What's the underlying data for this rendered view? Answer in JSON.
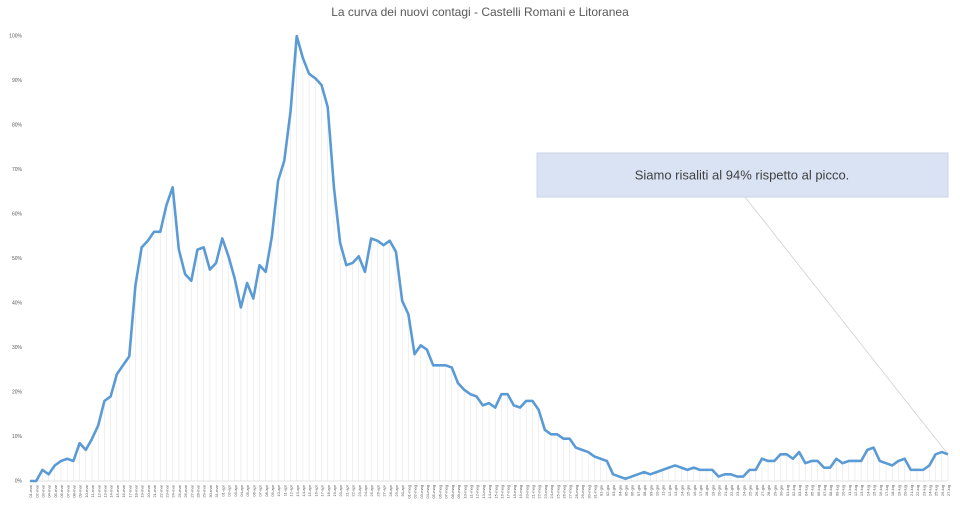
{
  "chart_data": {
    "type": "line",
    "title": "La curva dei nuovi contagi - Castelli Romani e Litoranea",
    "annotation": "Siamo risaliti al 94% rispetto al picco.",
    "categories": [
      "01-mar",
      "02-mar",
      "03-mar",
      "04-mar",
      "05-mar",
      "06-mar",
      "07-mar",
      "08-mar",
      "09-mar",
      "10-mar",
      "11-mar",
      "12-mar",
      "13-mar",
      "14-mar",
      "15-mar",
      "16-mar",
      "17-mar",
      "18-mar",
      "19-mar",
      "20-mar",
      "21-mar",
      "22-mar",
      "23-mar",
      "24-mar",
      "25-mar",
      "26-mar",
      "27-mar",
      "28-mar",
      "29-mar",
      "30-mar",
      "31-mar",
      "01-apr",
      "02-apr",
      "03-apr",
      "04-apr",
      "05-apr",
      "06-apr",
      "07-apr",
      "08-apr",
      "09-apr",
      "10-apr",
      "11-apr",
      "12-apr",
      "13-apr",
      "14-apr",
      "15-apr",
      "16-apr",
      "17-apr",
      "18-apr",
      "19-apr",
      "20-apr",
      "21-apr",
      "22-apr",
      "23-apr",
      "24-apr",
      "25-apr",
      "26-apr",
      "27-apr",
      "28-apr",
      "29-apr",
      "30-apr",
      "01-mag",
      "02-mag",
      "03-mag",
      "04-mag",
      "05-mag",
      "06-mag",
      "07-mag",
      "08-mag",
      "09-mag",
      "10-mag",
      "11-mag",
      "12-mag",
      "13-mag",
      "14-mag",
      "15-mag",
      "16-mag",
      "17-mag",
      "18-mag",
      "19-mag",
      "20-mag",
      "21-mag",
      "22-mag",
      "23-mag",
      "24-mag",
      "25-mag",
      "26-mag",
      "27-mag",
      "28-mag",
      "29-mag",
      "30-mag",
      "31-mag",
      "01-giu",
      "02-giu",
      "03-giu",
      "04-giu",
      "05-giu",
      "06-giu",
      "07-giu",
      "08-giu",
      "09-giu",
      "10-giu",
      "11-giu",
      "12-giu",
      "13-giu",
      "14-giu",
      "15-giu",
      "16-giu",
      "17-giu",
      "18-giu",
      "19-giu",
      "20-giu",
      "21-giu",
      "22-giu",
      "23-giu",
      "24-giu",
      "25-giu",
      "26-giu",
      "27-giu",
      "28-giu",
      "29-giu",
      "30-giu",
      "01-lug",
      "02-lug",
      "03-lug",
      "04-lug",
      "05-lug",
      "06-lug",
      "07-lug",
      "08-lug",
      "09-lug",
      "10-lug",
      "11-lug",
      "12-lug",
      "13-lug",
      "14-lug",
      "15-lug",
      "16-lug",
      "17-lug",
      "18-lug",
      "19-lug",
      "20-lug",
      "21-lug",
      "22-lug",
      "23-lug",
      "24-lug",
      "25-lug",
      "26-lug",
      "27-lug"
    ],
    "series": [
      {
        "name": "Nuovi contagi",
        "color": "#5b9bd5",
        "values": [
          0,
          0,
          2.5,
          1.5,
          3.5,
          4.5,
          5,
          4.5,
          8.5,
          7,
          9.5,
          12.5,
          18,
          19,
          24,
          26,
          28,
          44,
          52.5,
          54,
          56,
          56,
          62,
          66,
          52,
          46.5,
          45,
          52,
          52.5,
          47.5,
          49,
          54.5,
          50.5,
          45.5,
          39,
          44.5,
          41,
          48.5,
          47,
          55,
          67.5,
          72,
          83,
          100,
          95,
          91.5,
          90.5,
          89,
          84,
          66,
          53.5,
          48.5,
          49,
          50.5,
          47,
          54.5,
          54,
          53,
          54,
          51.5,
          40.5,
          37.5,
          28.5,
          30.5,
          29.5,
          26,
          26,
          26,
          25.5,
          22,
          20.5,
          19.5,
          19,
          17,
          17.5,
          16.5,
          19.5,
          19.5,
          17,
          16.5,
          18,
          18,
          16,
          11.5,
          10.5,
          10.5,
          9.5,
          9.5,
          7.5,
          7,
          6.5,
          5.5,
          5,
          4.5,
          1.5,
          1,
          0.5,
          1,
          1.5,
          2,
          1.5,
          2,
          2.5,
          3,
          3.5,
          3,
          2.5,
          3,
          2.5,
          2.5,
          2.5,
          1,
          1.5,
          1.5,
          1,
          1,
          2.5,
          2.5,
          5,
          4.5,
          4.5,
          6,
          6,
          5,
          6.5,
          4,
          4.5,
          4.5,
          3,
          3,
          5,
          4,
          4.5,
          4.5,
          4.5,
          7,
          7.5,
          4.5,
          4,
          3.5,
          4.5,
          5,
          2.5,
          2.5,
          2.5,
          3.5,
          6,
          6.5,
          6
        ]
      }
    ],
    "ylim": [
      0,
      100
    ],
    "yticks": [
      {
        "value": 0,
        "label": "0%"
      },
      {
        "value": 10,
        "label": "10%"
      },
      {
        "value": 20,
        "label": "20%"
      },
      {
        "value": 30,
        "label": "30%"
      },
      {
        "value": 40,
        "label": "40%"
      },
      {
        "value": 50,
        "label": "50%"
      },
      {
        "value": 60,
        "label": "60%"
      },
      {
        "value": 70,
        "label": "70%"
      },
      {
        "value": 80,
        "label": "80%"
      },
      {
        "value": 90,
        "label": "90%"
      },
      {
        "value": 100,
        "label": "100%"
      }
    ],
    "grid": false
  }
}
